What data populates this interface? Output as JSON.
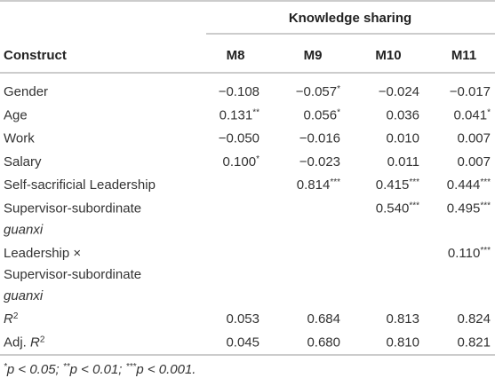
{
  "table": {
    "group_header": "Knowledge sharing",
    "columns": [
      "Construct",
      "M8",
      "M9",
      "M10",
      "M11"
    ],
    "rows": [
      {
        "label": [
          [
            {
              "t": "Gender"
            }
          ]
        ],
        "cells": [
          [
            {
              "t": "−0.108"
            }
          ],
          [
            {
              "t": "−0.057"
            },
            {
              "t": "*",
              "s": true
            }
          ],
          [
            {
              "t": "−0.024"
            }
          ],
          [
            {
              "t": "−0.017"
            }
          ]
        ]
      },
      {
        "label": [
          [
            {
              "t": "Age"
            }
          ]
        ],
        "cells": [
          [
            {
              "t": "0.131"
            },
            {
              "t": "**",
              "s": true
            }
          ],
          [
            {
              "t": "0.056"
            },
            {
              "t": "*",
              "s": true
            }
          ],
          [
            {
              "t": "0.036"
            }
          ],
          [
            {
              "t": "0.041"
            },
            {
              "t": "*",
              "s": true
            }
          ]
        ]
      },
      {
        "label": [
          [
            {
              "t": "Work"
            }
          ]
        ],
        "cells": [
          [
            {
              "t": "−0.050"
            }
          ],
          [
            {
              "t": "−0.016"
            }
          ],
          [
            {
              "t": "0.010"
            }
          ],
          [
            {
              "t": "0.007"
            }
          ]
        ]
      },
      {
        "label": [
          [
            {
              "t": "Salary"
            }
          ]
        ],
        "cells": [
          [
            {
              "t": "0.100"
            },
            {
              "t": "*",
              "s": true
            }
          ],
          [
            {
              "t": "−0.023"
            }
          ],
          [
            {
              "t": "0.011"
            }
          ],
          [
            {
              "t": "0.007"
            }
          ]
        ]
      },
      {
        "label": [
          [
            {
              "t": "Self-sacrificial Leadership"
            }
          ]
        ],
        "cells": [
          null,
          [
            {
              "t": "0.814"
            },
            {
              "t": "***",
              "s": true
            }
          ],
          [
            {
              "t": "0.415"
            },
            {
              "t": "***",
              "s": true
            }
          ],
          [
            {
              "t": "0.444"
            },
            {
              "t": "***",
              "s": true
            }
          ]
        ]
      },
      {
        "label": [
          [
            {
              "t": "Supervisor-subordinate"
            }
          ],
          [
            {
              "t": "guanxi",
              "i": true
            }
          ]
        ],
        "cells": [
          null,
          null,
          [
            {
              "t": "0.540"
            },
            {
              "t": "***",
              "s": true
            }
          ],
          [
            {
              "t": "0.495"
            },
            {
              "t": "***",
              "s": true
            }
          ]
        ]
      },
      {
        "label": [
          [
            {
              "t": "Leadership ×"
            }
          ],
          [
            {
              "t": "Supervisor-subordinate"
            }
          ],
          [
            {
              "t": "guanxi",
              "i": true
            }
          ]
        ],
        "cells": [
          null,
          null,
          null,
          [
            {
              "t": "0.110"
            },
            {
              "t": "***",
              "s": true
            }
          ]
        ]
      },
      {
        "label": [
          [
            {
              "t": "R",
              "i": true
            },
            {
              "t": "2",
              "s": true
            }
          ]
        ],
        "cells": [
          [
            {
              "t": "0.053"
            }
          ],
          [
            {
              "t": "0.684"
            }
          ],
          [
            {
              "t": "0.813"
            }
          ],
          [
            {
              "t": "0.824"
            }
          ]
        ]
      },
      {
        "label": [
          [
            {
              "t": "Adj. "
            },
            {
              "t": "R",
              "i": true
            },
            {
              "t": "2",
              "s": true
            }
          ]
        ],
        "cells": [
          [
            {
              "t": "0.045"
            }
          ],
          [
            {
              "t": "0.680"
            }
          ],
          [
            {
              "t": "0.810"
            }
          ],
          [
            {
              "t": "0.821"
            }
          ]
        ]
      }
    ],
    "footnote": [
      {
        "t": "*",
        "s": true
      },
      {
        "t": "p < 0.05; "
      },
      {
        "t": "**",
        "s": true
      },
      {
        "t": "p < 0.01; "
      },
      {
        "t": "***",
        "s": true
      },
      {
        "t": "p < 0.001."
      }
    ]
  }
}
